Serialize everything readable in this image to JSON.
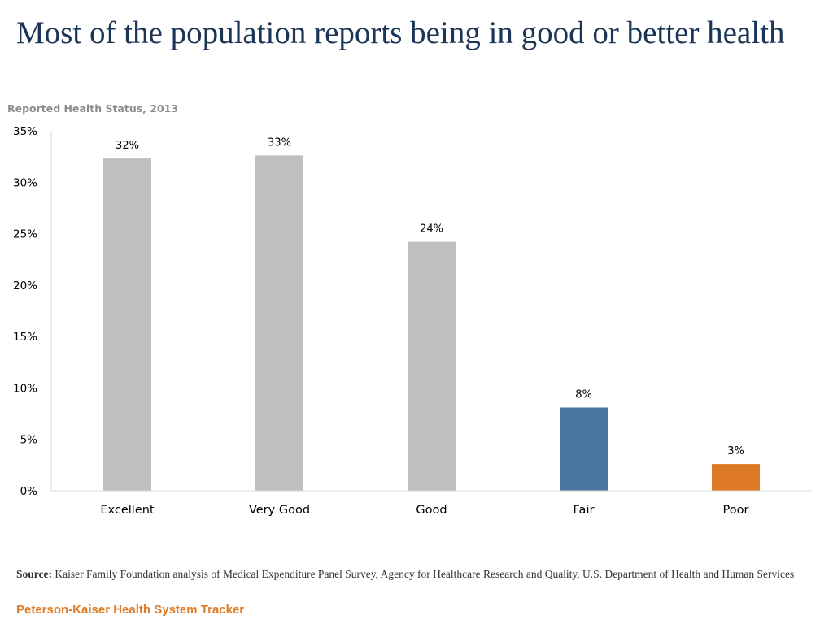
{
  "header": {
    "title": "Most of the population reports being in good or better health",
    "subtitle": "Reported Health Status, 2013"
  },
  "chart_data": {
    "type": "bar",
    "title": "Reported Health Status, 2013",
    "categories": [
      "Excellent",
      "Very Good",
      "Good",
      "Fair",
      "Poor"
    ],
    "values": [
      32.3,
      32.6,
      24.2,
      8.1,
      2.6
    ],
    "data_labels": [
      "32%",
      "33%",
      "24%",
      "8%",
      "3%"
    ],
    "bar_colors": [
      "#bfbfbf",
      "#bfbfbf",
      "#bfbfbf",
      "#4a76a0",
      "#de7a26"
    ],
    "xlabel": "",
    "ylabel": "",
    "ylim": [
      0,
      35
    ],
    "yticks": [
      0,
      5,
      10,
      15,
      20,
      25,
      30,
      35
    ],
    "ytick_labels": [
      "0%",
      "5%",
      "10%",
      "15%",
      "20%",
      "25%",
      "30%",
      "35%"
    ],
    "grid": false,
    "legend": "none"
  },
  "footer": {
    "source_label": "Source:",
    "source_text": "Kaiser Family Foundation analysis of Medical Expenditure Panel Survey, Agency for Healthcare Research and Quality, U.S. Department of Health and Human Services",
    "brand": "Peterson-Kaiser Health System Tracker"
  },
  "colors": {
    "title": "#1b3556",
    "subtitle": "#8c8c8c",
    "axis": "#d9d9d9",
    "brand": "#e07b26"
  }
}
